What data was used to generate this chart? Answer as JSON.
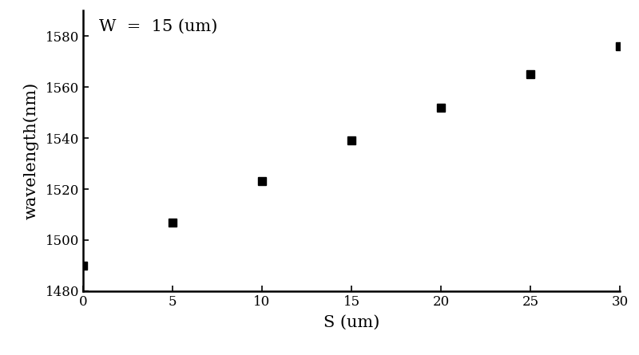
{
  "x": [
    0,
    5,
    10,
    15,
    20,
    25,
    30
  ],
  "y": [
    1490,
    1507,
    1523,
    1539,
    1552,
    1565,
    1576
  ],
  "xlabel": "S (um)",
  "ylabel": "wavelength(nm)",
  "annotation": "W  =  15 (um)",
  "xlim": [
    0,
    30
  ],
  "ylim": [
    1480,
    1590
  ],
  "xticks": [
    0,
    5,
    10,
    15,
    20,
    25,
    30
  ],
  "yticks": [
    1480,
    1500,
    1520,
    1540,
    1560,
    1580
  ],
  "marker_color": "#000000",
  "marker_size": 7,
  "background_color": "#ffffff",
  "annotation_fontsize": 15,
  "axis_label_fontsize": 15,
  "tick_fontsize": 12
}
